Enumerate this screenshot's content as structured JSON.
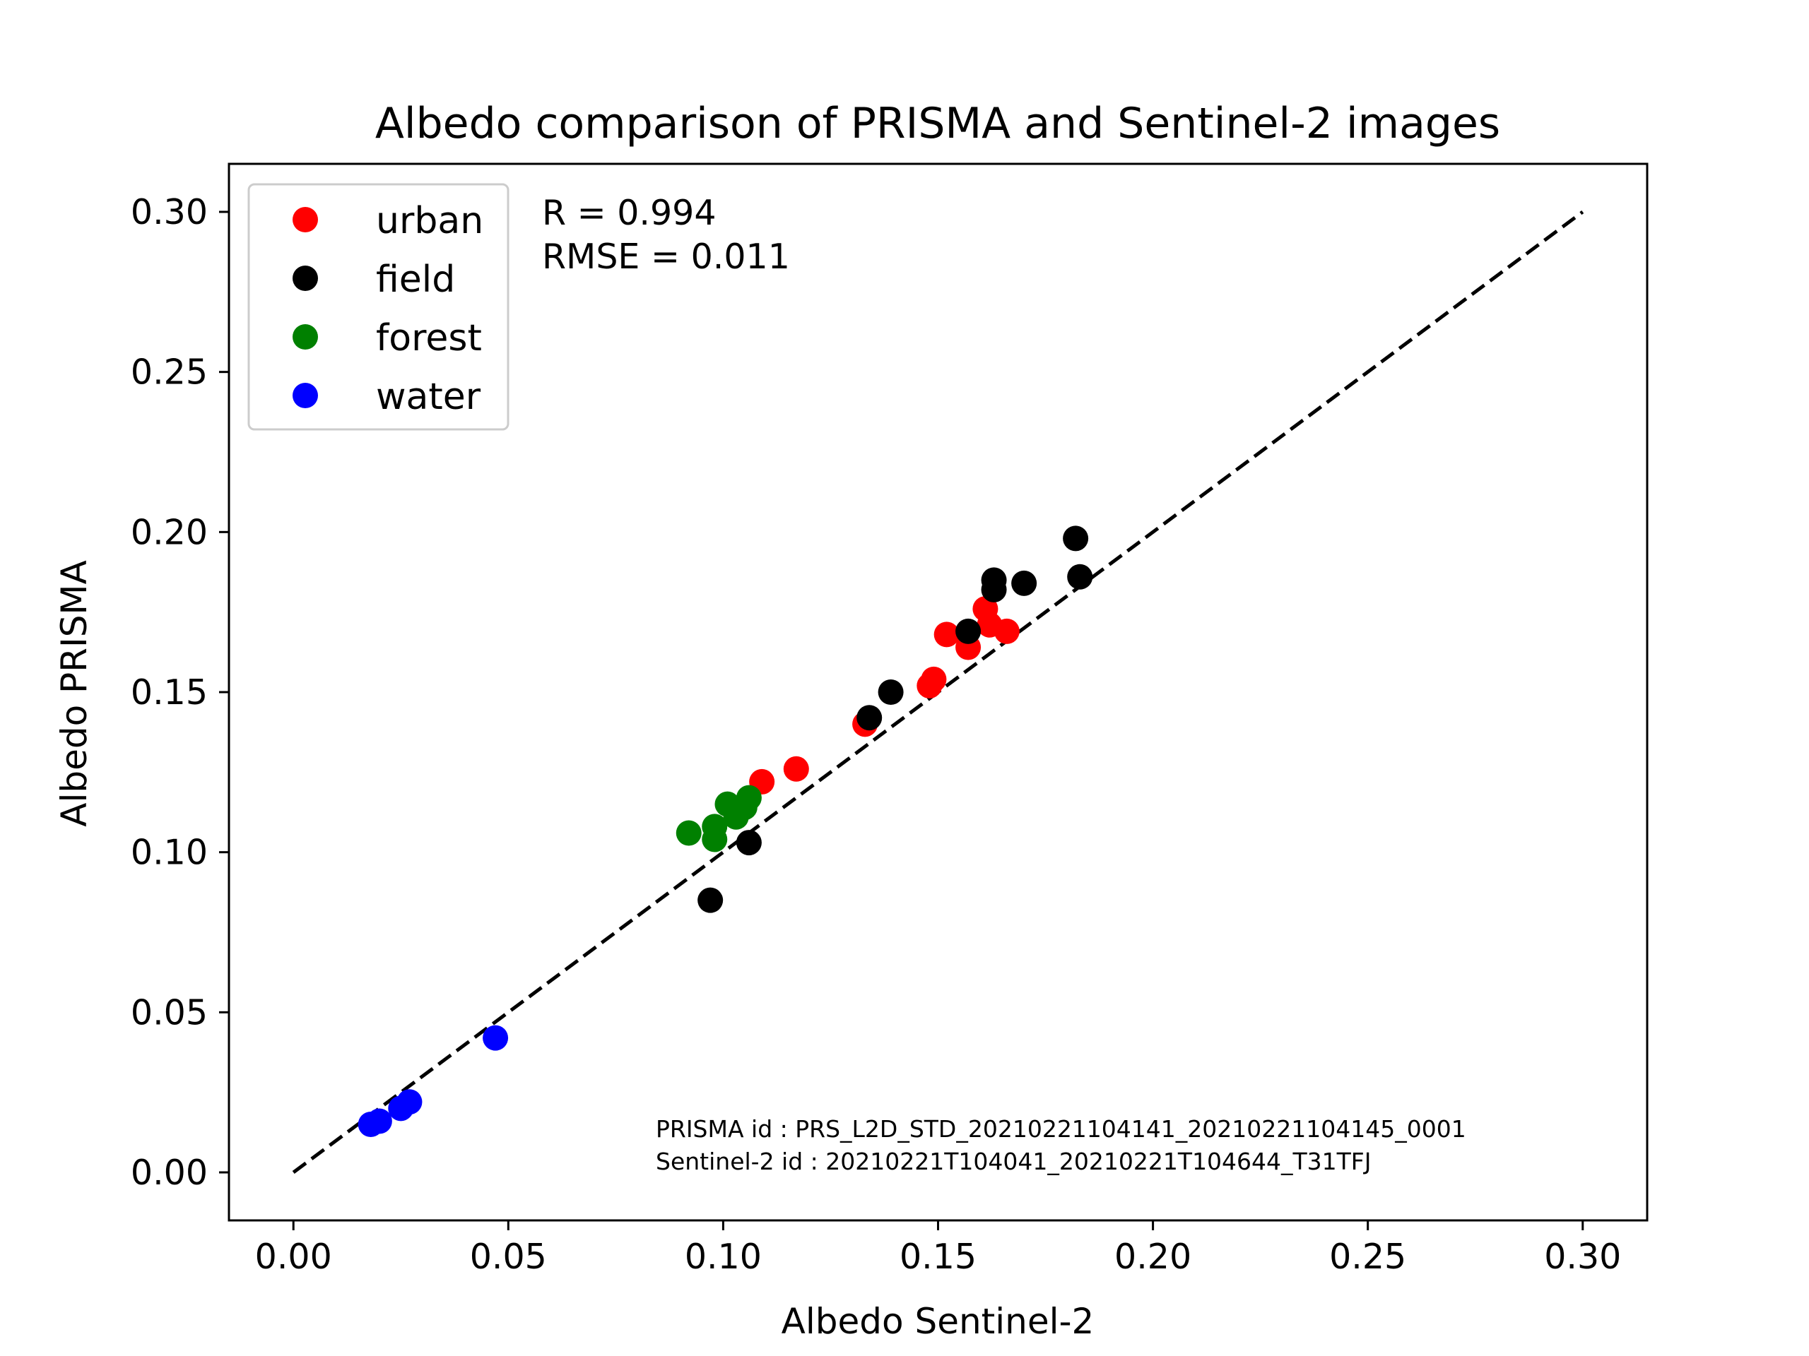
{
  "chart_data": {
    "type": "scatter",
    "title": "Albedo comparison of PRISMA and Sentinel-2 images",
    "xlabel": "Albedo Sentinel-2",
    "ylabel": "Albedo PRISMA",
    "xlim": [
      -0.015,
      0.315
    ],
    "ylim": [
      -0.015,
      0.315
    ],
    "x_ticks": [
      "0.00",
      "0.05",
      "0.10",
      "0.15",
      "0.20",
      "0.25",
      "0.30"
    ],
    "y_ticks": [
      "0.00",
      "0.05",
      "0.10",
      "0.15",
      "0.20",
      "0.25",
      "0.30"
    ],
    "tick_values": [
      0.0,
      0.05,
      0.1,
      0.15,
      0.2,
      0.25,
      0.3
    ],
    "grid": false,
    "legend_position": "top-left",
    "reference_line": {
      "style": "dashed",
      "color": "#000000",
      "from": [
        0.0,
        0.0
      ],
      "to": [
        0.3,
        0.3
      ]
    },
    "annotations": {
      "r": "R = 0.994",
      "rmse": "RMSE = 0.011",
      "prisma_id": "PRISMA id : PRS_L2D_STD_20210221104141_20210221104145_0001",
      "sentinel_id": "Sentinel-2 id : 20210221T104041_20210221T104644_T31TFJ"
    },
    "series": [
      {
        "name": "urban",
        "color": "#ff0000",
        "points": [
          [
            0.109,
            0.122
          ],
          [
            0.117,
            0.126
          ],
          [
            0.133,
            0.14
          ],
          [
            0.148,
            0.152
          ],
          [
            0.149,
            0.154
          ],
          [
            0.152,
            0.168
          ],
          [
            0.157,
            0.164
          ],
          [
            0.161,
            0.176
          ],
          [
            0.162,
            0.171
          ],
          [
            0.166,
            0.169
          ]
        ]
      },
      {
        "name": "field",
        "color": "#000000",
        "points": [
          [
            0.097,
            0.085
          ],
          [
            0.106,
            0.103
          ],
          [
            0.134,
            0.142
          ],
          [
            0.139,
            0.15
          ],
          [
            0.157,
            0.169
          ],
          [
            0.163,
            0.185
          ],
          [
            0.163,
            0.182
          ],
          [
            0.17,
            0.184
          ],
          [
            0.182,
            0.198
          ],
          [
            0.183,
            0.186
          ]
        ]
      },
      {
        "name": "forest",
        "color": "#008000",
        "points": [
          [
            0.092,
            0.106
          ],
          [
            0.098,
            0.108
          ],
          [
            0.098,
            0.104
          ],
          [
            0.101,
            0.115
          ],
          [
            0.103,
            0.111
          ],
          [
            0.105,
            0.114
          ],
          [
            0.106,
            0.117
          ]
        ]
      },
      {
        "name": "water",
        "color": "#0000ff",
        "points": [
          [
            0.018,
            0.015
          ],
          [
            0.02,
            0.016
          ],
          [
            0.025,
            0.02
          ],
          [
            0.027,
            0.022
          ],
          [
            0.047,
            0.042
          ]
        ]
      }
    ]
  }
}
